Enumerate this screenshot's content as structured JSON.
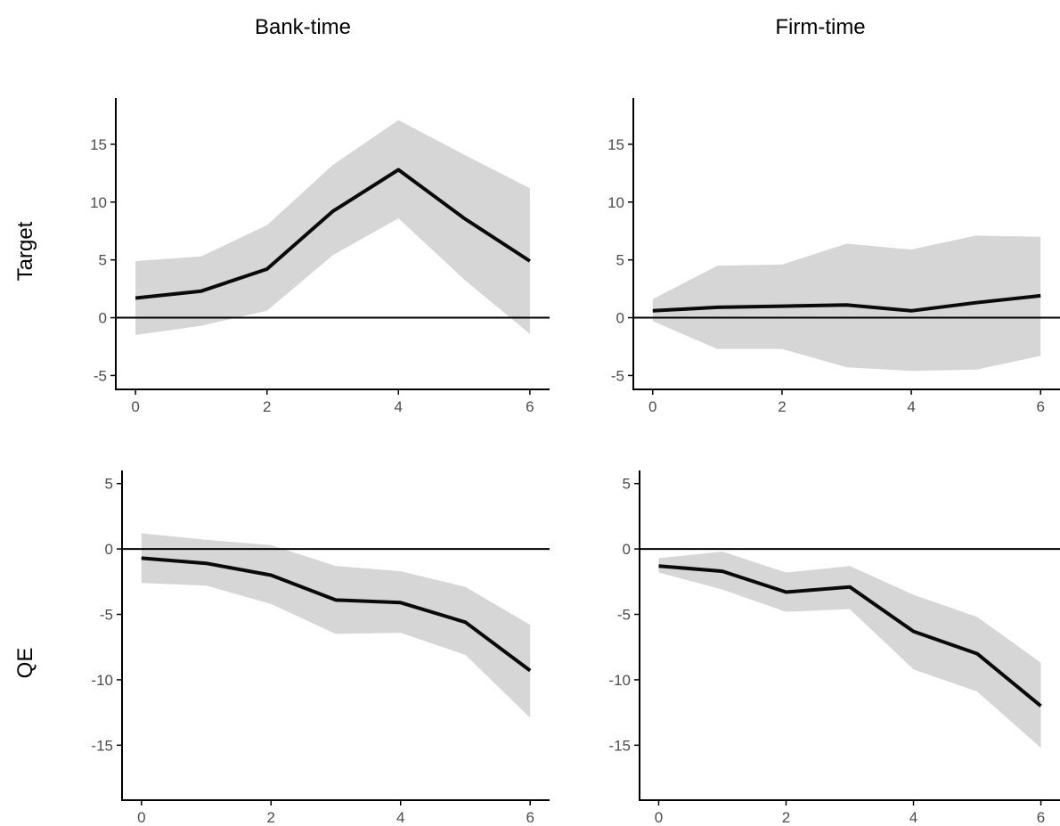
{
  "column_titles": [
    "Bank-time",
    "Firm-time"
  ],
  "row_titles": [
    "Target",
    "QE"
  ],
  "colors": {
    "band": "#d6d6d6",
    "line": "#0a0a0a",
    "axis": "#000000",
    "tick_text": "#4d4d4d"
  },
  "chart_data": [
    {
      "type": "line",
      "row": "Target",
      "column": "Bank-time",
      "x": [
        0,
        1,
        2,
        3,
        4,
        5,
        6
      ],
      "series": [
        {
          "values": [
            1.7,
            2.3,
            4.2,
            9.2,
            12.8,
            8.6,
            4.9
          ]
        }
      ],
      "band": {
        "lower": [
          -1.5,
          -0.7,
          0.6,
          5.4,
          8.6,
          3.3,
          -1.4
        ],
        "upper": [
          4.9,
          5.3,
          8.0,
          13.2,
          17.1,
          14.1,
          11.2
        ]
      },
      "xlim": [
        -0.3,
        6.3
      ],
      "ylim": [
        -6.2,
        19.0
      ],
      "xticks": [
        0,
        2,
        4,
        6
      ],
      "yticks": [
        -5,
        0,
        5,
        10,
        15
      ],
      "hline": 0
    },
    {
      "type": "line",
      "row": "Target",
      "column": "Firm-time",
      "x": [
        0,
        1,
        2,
        3,
        4,
        5,
        6
      ],
      "series": [
        {
          "values": [
            0.6,
            0.9,
            1.0,
            1.1,
            0.6,
            1.3,
            1.9
          ]
        }
      ],
      "band": {
        "lower": [
          -0.3,
          -2.7,
          -2.7,
          -4.3,
          -4.6,
          -4.5,
          -3.3
        ],
        "upper": [
          1.6,
          4.5,
          4.6,
          6.4,
          5.9,
          7.1,
          7.0
        ]
      },
      "xlim": [
        -0.3,
        6.3
      ],
      "ylim": [
        -6.2,
        19.0
      ],
      "xticks": [
        0,
        2,
        4,
        6
      ],
      "yticks": [
        -5,
        0,
        5,
        10,
        15
      ],
      "hline": 0
    },
    {
      "type": "line",
      "row": "QE",
      "column": "Bank-time",
      "x": [
        0,
        1,
        2,
        3,
        4,
        5,
        6
      ],
      "series": [
        {
          "values": [
            -0.7,
            -1.1,
            -2.0,
            -3.9,
            -4.1,
            -5.6,
            -9.3
          ]
        }
      ],
      "band": {
        "lower": [
          -2.6,
          -2.8,
          -4.2,
          -6.5,
          -6.4,
          -8.1,
          -12.9
        ],
        "upper": [
          1.2,
          0.7,
          0.3,
          -1.3,
          -1.7,
          -2.9,
          -5.8
        ]
      },
      "xlim": [
        -0.3,
        6.3
      ],
      "ylim": [
        -19.2,
        6.0
      ],
      "xticks": [
        0,
        2,
        4,
        6
      ],
      "yticks": [
        -15,
        -10,
        -5,
        0,
        5
      ],
      "hline": 0
    },
    {
      "type": "line",
      "row": "QE",
      "column": "Firm-time",
      "x": [
        0,
        1,
        2,
        3,
        4,
        5,
        6
      ],
      "series": [
        {
          "values": [
            -1.3,
            -1.7,
            -3.3,
            -2.9,
            -6.3,
            -8.0,
            -12.0
          ]
        }
      ],
      "band": {
        "lower": [
          -1.8,
          -3.1,
          -4.8,
          -4.6,
          -9.2,
          -10.9,
          -15.2
        ],
        "upper": [
          -0.7,
          -0.2,
          -1.8,
          -1.3,
          -3.5,
          -5.2,
          -8.7
        ]
      },
      "xlim": [
        -0.3,
        6.3
      ],
      "ylim": [
        -19.2,
        6.0
      ],
      "xticks": [
        0,
        2,
        4,
        6
      ],
      "yticks": [
        -15,
        -10,
        -5,
        0,
        5
      ],
      "hline": 0
    }
  ]
}
